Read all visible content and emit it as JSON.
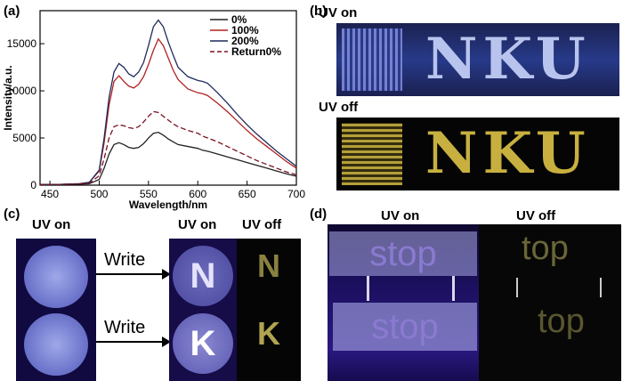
{
  "panels": {
    "a": {
      "label": "(a)"
    },
    "b": {
      "label": "(b)",
      "uv_on": "UV on",
      "uv_off": "UV off",
      "word": "NKU"
    },
    "c": {
      "label": "(c)",
      "uv_on_left": "UV on",
      "uv_on_right": "UV on",
      "uv_off": "UV off",
      "write1": "Write",
      "write2": "Write",
      "letter1": "N",
      "letter2": "K"
    },
    "d": {
      "label": "(d)",
      "uv_on": "UV on",
      "uv_off": "UV off",
      "word_on": "stop",
      "word_off": "top"
    }
  },
  "colors": {
    "s0": "#222222",
    "s100": "#b22222",
    "s200": "#1f2a5a",
    "sret": "#7a1020",
    "uvblue": "#3a2fa8",
    "gold": "#c8b040"
  },
  "chart_data": {
    "type": "line",
    "title": "",
    "xlabel": "Wavelength/nm",
    "ylabel": "Intensity/a.u.",
    "xlim": [
      440,
      700
    ],
    "ylim": [
      0,
      18500
    ],
    "xticks": [
      450,
      500,
      550,
      600,
      650,
      700
    ],
    "yticks": [
      0,
      5000,
      10000,
      15000
    ],
    "x": [
      440,
      460,
      480,
      490,
      500,
      505,
      510,
      515,
      520,
      525,
      530,
      535,
      540,
      545,
      550,
      555,
      560,
      565,
      570,
      575,
      580,
      590,
      600,
      605,
      610,
      620,
      630,
      640,
      650,
      660,
      670,
      680,
      690,
      700
    ],
    "series": [
      {
        "name": "0%",
        "style": "solid",
        "values": [
          80,
          80,
          100,
          150,
          600,
          1800,
          3300,
          4300,
          4500,
          4300,
          4000,
          3900,
          4000,
          4400,
          5000,
          5500,
          5600,
          5300,
          4900,
          4600,
          4300,
          4100,
          3900,
          3700,
          3600,
          3300,
          3000,
          2700,
          2400,
          2100,
          1800,
          1500,
          1200,
          950
        ]
      },
      {
        "name": "100%",
        "style": "solid",
        "values": [
          80,
          80,
          150,
          300,
          1500,
          4500,
          8500,
          11000,
          11600,
          11000,
          10500,
          10300,
          10700,
          11500,
          12800,
          14300,
          15500,
          14800,
          13500,
          12200,
          11200,
          10200,
          9800,
          9700,
          9500,
          8700,
          7800,
          6800,
          5800,
          4900,
          4100,
          3300,
          2500,
          1800
        ]
      },
      {
        "name": "200%",
        "style": "solid",
        "values": [
          80,
          80,
          150,
          300,
          1600,
          5000,
          9300,
          12000,
          12900,
          12500,
          11800,
          11500,
          12000,
          13000,
          14800,
          16800,
          17500,
          16800,
          15200,
          13800,
          12500,
          11500,
          11100,
          11000,
          10800,
          9800,
          8700,
          7500,
          6400,
          5400,
          4500,
          3600,
          2800,
          2000
        ]
      },
      {
        "name": "Return0%",
        "style": "dashed",
        "values": [
          80,
          80,
          120,
          200,
          1000,
          2800,
          5000,
          6200,
          6400,
          6300,
          6100,
          6000,
          6200,
          6700,
          7300,
          7800,
          7700,
          7300,
          6900,
          6500,
          6200,
          5800,
          5500,
          5200,
          5000,
          4600,
          4100,
          3600,
          3100,
          2600,
          2200,
          1800,
          1400,
          1100
        ]
      }
    ],
    "legend_position": "top-right"
  }
}
